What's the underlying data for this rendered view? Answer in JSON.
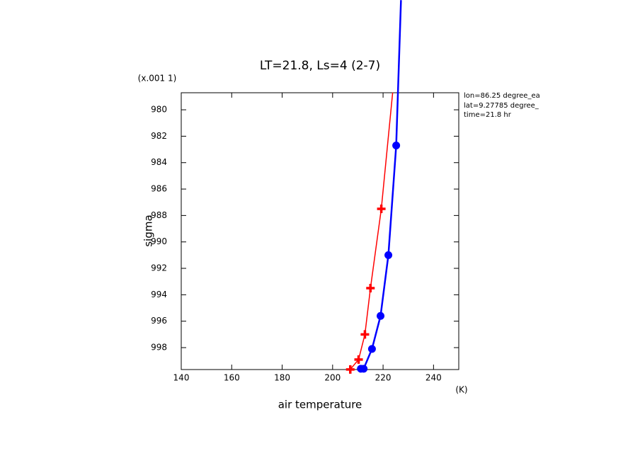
{
  "chart_data": {
    "type": "line",
    "title": "LT=21.8, Ls=4 (2-7)",
    "y_unit_label": "(x.001 1)",
    "x_unit_label": "(K)",
    "xlabel": "air temperature",
    "ylabel": "sigma",
    "annotations": [
      "lon=86.25 degree_ea",
      "lat=9.27785 degree_",
      "time=21.8 hr"
    ],
    "xlim": [
      140,
      250
    ],
    "xticks": [
      140,
      160,
      180,
      200,
      220,
      240
    ],
    "ylim": [
      999.66,
      978.71
    ],
    "yticks": [
      980,
      982,
      984,
      986,
      988,
      990,
      992,
      994,
      996,
      998
    ],
    "series": [
      {
        "color": "#ff0000",
        "marker": "plus",
        "x": [
          223.8,
          219.3,
          215,
          212.8,
          210.3,
          207
        ],
        "values": [
          978.7,
          987.5,
          993.5,
          997,
          998.9,
          999.65
        ]
      },
      {
        "color": "#0000ff",
        "marker": "circle",
        "x": [
          227.1,
          225.2,
          222.1,
          219,
          215.6,
          212.3,
          211.2
        ],
        "values": [
          971.7,
          982.7,
          991,
          995.6,
          998.1,
          999.6,
          999.6
        ]
      }
    ]
  }
}
